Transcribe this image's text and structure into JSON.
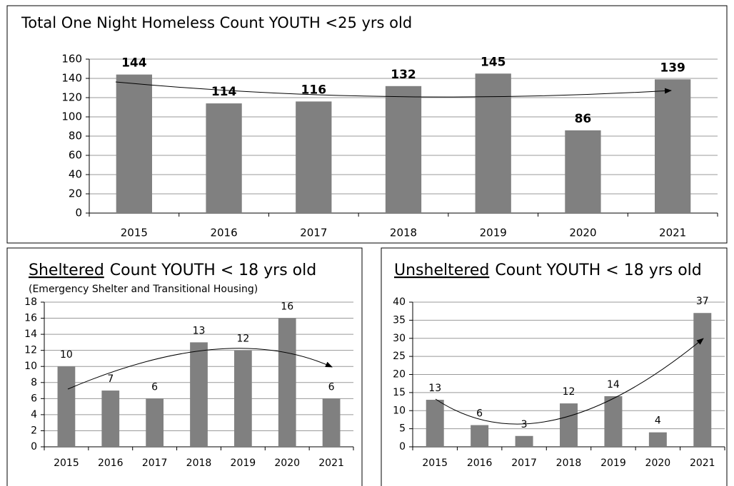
{
  "chart_data": [
    {
      "type": "bar",
      "title": "Total One Night Homeless Count YOUTH <25 yrs old",
      "categories": [
        "2015",
        "2016",
        "2017",
        "2018",
        "2019",
        "2020",
        "2021"
      ],
      "values": [
        144,
        114,
        116,
        132,
        145,
        86,
        139
      ],
      "color": "#808080",
      "ylim": [
        0,
        160
      ],
      "yticks": [
        0,
        20,
        40,
        60,
        80,
        100,
        120,
        140,
        160
      ],
      "grid": true
    },
    {
      "type": "bar",
      "title_emphasis": "Sheltered",
      "title": "Count YOUTH < 18 yrs old",
      "subtitle": "(Emergency Shelter and Transitional Housing)",
      "categories": [
        "2015",
        "2016",
        "2017",
        "2018",
        "2019",
        "2020",
        "2021"
      ],
      "values": [
        10,
        7,
        6,
        13,
        12,
        16,
        6
      ],
      "color": "#808080",
      "ylim": [
        0,
        18
      ],
      "yticks": [
        0,
        2,
        4,
        6,
        8,
        10,
        12,
        14,
        16,
        18
      ],
      "grid": true
    },
    {
      "type": "bar",
      "title_emphasis": "Unsheltered",
      "title": "Count  YOUTH < 18 yrs old",
      "categories": [
        "2015",
        "2016",
        "2017",
        "2018",
        "2019",
        "2020",
        "2021"
      ],
      "values": [
        13,
        6,
        3,
        12,
        14,
        4,
        37
      ],
      "color": "#808080",
      "ylim": [
        0,
        40
      ],
      "yticks": [
        0,
        5,
        10,
        15,
        20,
        25,
        30,
        35,
        40
      ],
      "grid": true
    }
  ]
}
